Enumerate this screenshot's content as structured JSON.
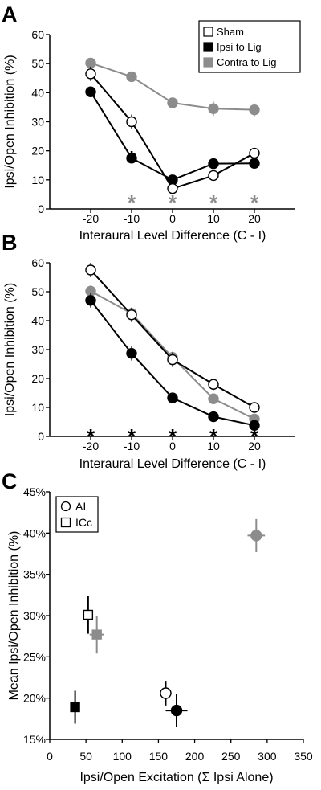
{
  "colors": {
    "sham": "#ffffff",
    "ipsi": "#000000",
    "contra": "#8c8c8c",
    "axis": "#000000"
  },
  "legend_entries": [
    "Sham",
    "Ipsi to Lig",
    "Contra to Lig"
  ],
  "chart_data": [
    {
      "panel": "A",
      "type": "line",
      "xlabel": "Interaural Level Difference (C - I)",
      "ylabel": "Ipsi/Open Inhibition (%)",
      "x": [
        -20,
        -10,
        0,
        10,
        20
      ],
      "xlim": [
        -30,
        30
      ],
      "ylim": [
        0,
        60
      ],
      "yticks": [
        0,
        10,
        20,
        30,
        40,
        50,
        60
      ],
      "xticks": [
        -20,
        -10,
        0,
        10,
        20
      ],
      "legend": "top-right",
      "series": [
        {
          "name": "Sham",
          "color": "white",
          "values": [
            46.5,
            30,
            7,
            11.5,
            19.2
          ],
          "err": [
            2.5,
            2.5,
            1.5,
            1.5,
            1.5
          ]
        },
        {
          "name": "Ipsi to Lig",
          "color": "black",
          "values": [
            40.3,
            17.5,
            10,
            15.6,
            15.7
          ],
          "err": [
            1.8,
            1.8,
            1.3,
            1.3,
            1.3
          ]
        },
        {
          "name": "Contra to Lig",
          "color": "gray",
          "values": [
            50.2,
            45.5,
            36.5,
            34.5,
            34.1
          ],
          "err": [
            1.2,
            1.2,
            1.5,
            2.5,
            2.2
          ]
        }
      ],
      "significance": [
        {
          "x": -10,
          "color": "black",
          "label": "*"
        },
        {
          "x": -10,
          "color": "gray",
          "label": "*"
        },
        {
          "x": 0,
          "color": "gray",
          "label": "*"
        },
        {
          "x": 10,
          "color": "gray",
          "label": "*"
        },
        {
          "x": 20,
          "color": "gray",
          "label": "*"
        }
      ]
    },
    {
      "panel": "B",
      "type": "line",
      "xlabel": "Interaural Level Difference (C - I)",
      "ylabel": "Ipsi/Open Inhibition (%)",
      "x": [
        -20,
        -10,
        0,
        10,
        20
      ],
      "xlim": [
        -30,
        30
      ],
      "ylim": [
        0,
        60
      ],
      "yticks": [
        0,
        10,
        20,
        30,
        40,
        50,
        60
      ],
      "xticks": [
        -20,
        -10,
        0,
        10,
        20
      ],
      "series": [
        {
          "name": "Sham",
          "color": "white",
          "values": [
            57.5,
            42,
            26.5,
            18,
            10
          ],
          "err": [
            2.5,
            2.5,
            2.5,
            2,
            1.5
          ]
        },
        {
          "name": "Ipsi to Lig",
          "color": "black",
          "values": [
            47,
            28.7,
            13.3,
            6.8,
            3.8
          ],
          "err": [
            2.5,
            2.5,
            1.5,
            1,
            1
          ]
        },
        {
          "name": "Contra to Lig",
          "color": "gray",
          "values": [
            50.2,
            42.5,
            27.3,
            13,
            6
          ],
          "err": [
            2,
            2,
            2,
            1.5,
            1
          ]
        }
      ],
      "significance": [
        {
          "x": -20,
          "color": "black",
          "label": "*"
        },
        {
          "x": -10,
          "color": "black",
          "label": "*"
        },
        {
          "x": 0,
          "color": "black",
          "label": "*"
        },
        {
          "x": 10,
          "color": "black",
          "label": "*"
        },
        {
          "x": 20,
          "color": "black",
          "label": "*"
        }
      ]
    },
    {
      "panel": "C",
      "type": "scatter",
      "xlabel": "Ipsi/Open Excitation (Σ Ipsi Alone)",
      "ylabel": "Mean Ipsi/Open Inhibition (%)",
      "xlim": [
        0,
        350
      ],
      "ylim": [
        15,
        45
      ],
      "xticks": [
        0,
        50,
        100,
        150,
        200,
        250,
        300,
        350
      ],
      "yticks": [
        15,
        20,
        25,
        30,
        35,
        40,
        45
      ],
      "ytick_labels": [
        "15%",
        "20%",
        "25%",
        "30%",
        "35%",
        "40%",
        "45%"
      ],
      "legend": "top-left",
      "legend_entries": [
        {
          "label": "AI",
          "marker": "circle"
        },
        {
          "label": "ICc",
          "marker": "square"
        }
      ],
      "points": [
        {
          "group": "ICc",
          "condition": "Sham",
          "color": "white",
          "marker": "square",
          "x": 53,
          "y": 30.1,
          "xerr": 5,
          "yerr": 2.3
        },
        {
          "group": "ICc",
          "condition": "Contra to Lig",
          "color": "gray",
          "marker": "square",
          "x": 65,
          "y": 27.7,
          "xerr": 10,
          "yerr": 2.3
        },
        {
          "group": "ICc",
          "condition": "Ipsi to Lig",
          "color": "black",
          "marker": "square",
          "x": 35,
          "y": 18.9,
          "xerr": 3,
          "yerr": 2
        },
        {
          "group": "AI",
          "condition": "Sham",
          "color": "white",
          "marker": "circle",
          "x": 160,
          "y": 20.6,
          "xerr": 8,
          "yerr": 1.5
        },
        {
          "group": "AI",
          "condition": "Ipsi to Lig",
          "color": "black",
          "marker": "circle",
          "x": 175,
          "y": 18.5,
          "xerr": 15,
          "yerr": 2
        },
        {
          "group": "AI",
          "condition": "Contra to Lig",
          "color": "gray",
          "marker": "circle",
          "x": 285,
          "y": 39.7,
          "xerr": 12,
          "yerr": 2
        }
      ]
    }
  ]
}
